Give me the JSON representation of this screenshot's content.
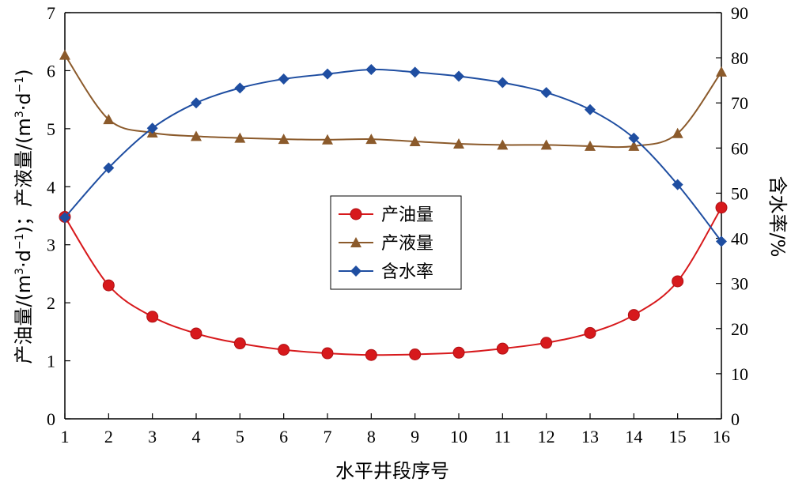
{
  "chart_data": {
    "type": "line",
    "x": [
      1,
      2,
      3,
      4,
      5,
      6,
      7,
      8,
      9,
      10,
      11,
      12,
      13,
      14,
      15,
      16
    ],
    "xlabel": "水平井段序号",
    "ylabel_left": {
      "part1": "产油量/(m",
      "sup1": "3",
      "part2": "·d",
      "sup2": "−1",
      "part3": ")；产液量/(m",
      "sup3": "3",
      "part4": "·d",
      "sup4": "−1",
      "part5": ")"
    },
    "ylabel_right": "含水率/%",
    "ylim_left": [
      0,
      7
    ],
    "ylim_right": [
      0,
      90
    ],
    "yticks_left": [
      0,
      1,
      2,
      3,
      4,
      5,
      6,
      7
    ],
    "yticks_right": [
      0,
      10,
      20,
      30,
      40,
      50,
      60,
      70,
      80,
      90
    ],
    "grid": false,
    "legend_placement": "center",
    "series": [
      {
        "name": "产油量",
        "axis": "left",
        "marker": "circle",
        "color": "#d7191c",
        "values": [
          3.48,
          2.3,
          1.76,
          1.47,
          1.3,
          1.19,
          1.13,
          1.1,
          1.11,
          1.14,
          1.21,
          1.31,
          1.48,
          1.79,
          2.37,
          3.64
        ]
      },
      {
        "name": "产液量",
        "axis": "left",
        "marker": "triangle",
        "color": "#8b5a2b",
        "values": [
          6.27,
          5.16,
          4.93,
          4.87,
          4.84,
          4.82,
          4.81,
          4.82,
          4.78,
          4.74,
          4.72,
          4.72,
          4.7,
          4.7,
          4.92,
          5.98
        ]
      },
      {
        "name": "含水率",
        "axis": "right",
        "marker": "diamond",
        "color": "#1f4ea1",
        "values": [
          44.6,
          55.6,
          64.4,
          70.0,
          73.3,
          75.3,
          76.4,
          77.4,
          76.8,
          75.9,
          74.5,
          72.3,
          68.5,
          62.2,
          51.9,
          39.3
        ]
      }
    ]
  }
}
